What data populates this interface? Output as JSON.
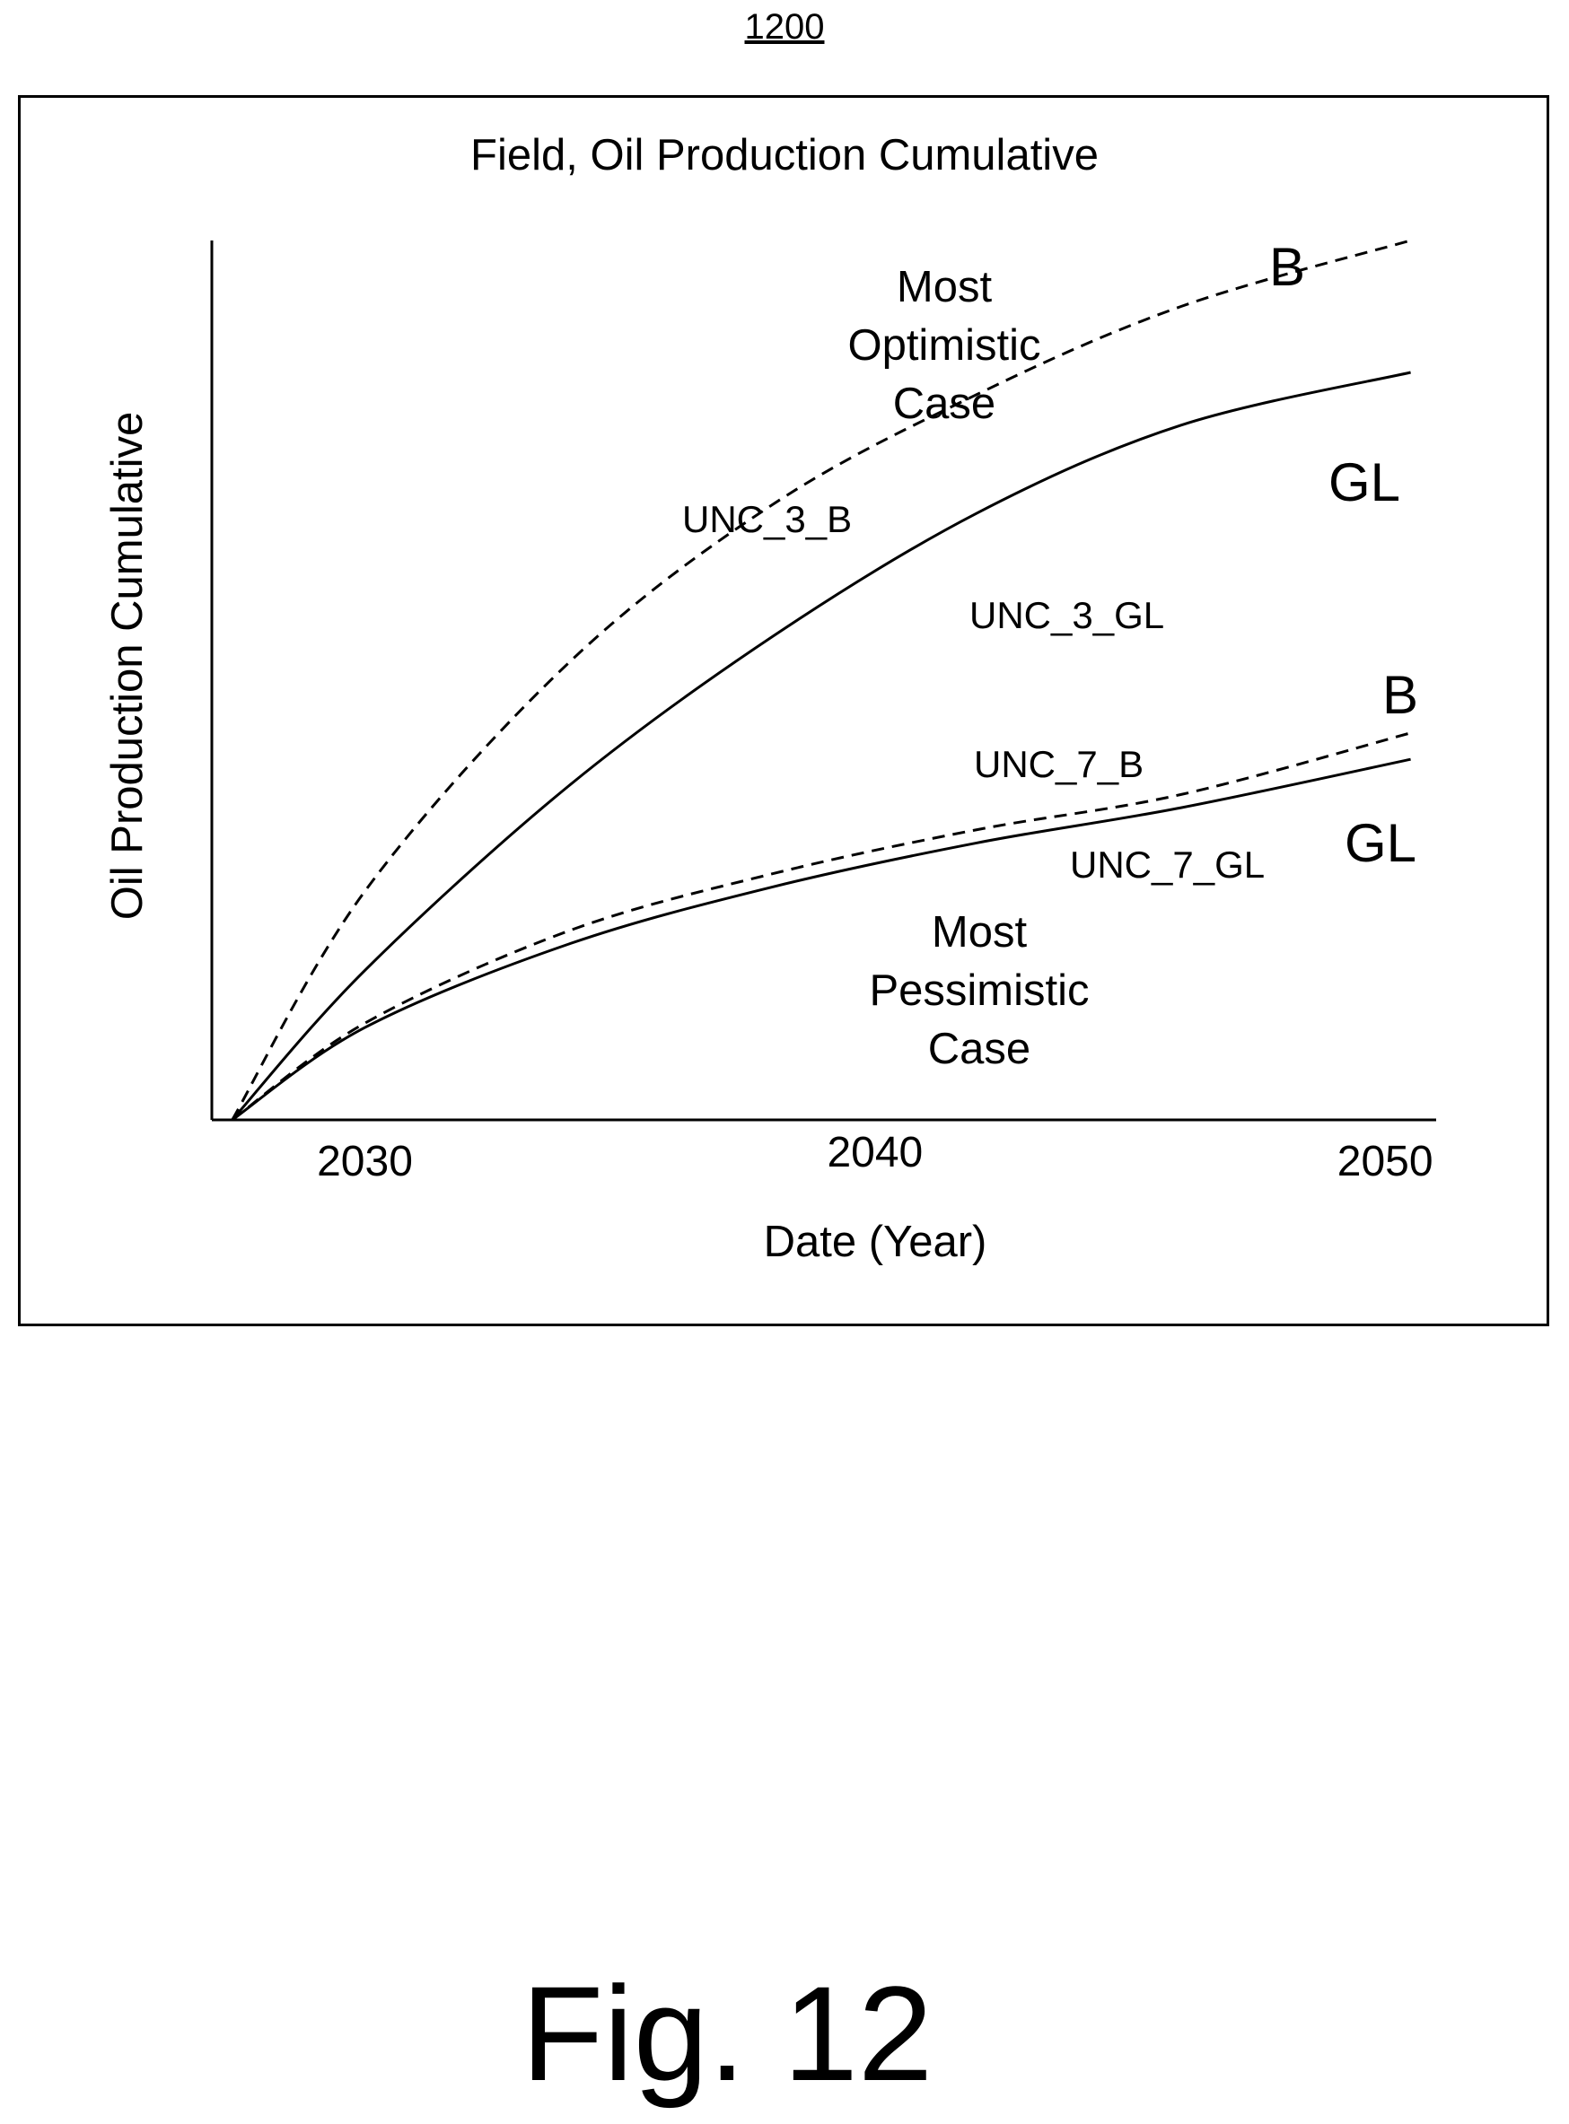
{
  "figure": {
    "ref_number": "1200",
    "caption": "Fig. 12"
  },
  "chart_data": {
    "type": "line",
    "title": "Field, Oil Production Cumulative",
    "xlabel": "Date (Year)",
    "ylabel": "Oil Production Cumulative",
    "x_ticks": [
      2030,
      2040,
      2050
    ],
    "xlim": [
      2027,
      2051
    ],
    "ylim": [
      0,
      100
    ],
    "grid": false,
    "series": [
      {
        "name": "UNC_3_B",
        "style": "dashed",
        "x": [
          2027.4,
          2030,
          2034,
          2038,
          2042,
          2046,
          2050.5
        ],
        "values": [
          0,
          26,
          52,
          70,
          82.5,
          92.5,
          100
        ]
      },
      {
        "name": "UNC_3_GL",
        "style": "solid",
        "x": [
          2027.4,
          2030,
          2034,
          2038,
          2042,
          2046,
          2050.5
        ],
        "values": [
          0,
          17,
          38,
          55,
          69,
          79,
          85
        ]
      },
      {
        "name": "UNC_7_B",
        "style": "dashed",
        "x": [
          2027.4,
          2030,
          2034,
          2038,
          2042,
          2046,
          2050.5
        ],
        "values": [
          0,
          11,
          21.5,
          28,
          33,
          37,
          44
        ]
      },
      {
        "name": "UNC_7_GL",
        "style": "solid",
        "x": [
          2027.4,
          2030,
          2034,
          2038,
          2042,
          2046,
          2050.5
        ],
        "values": [
          0,
          10.5,
          20,
          26.5,
          31.5,
          35.5,
          41
        ]
      }
    ],
    "annotations": [
      {
        "id": "optimistic",
        "lines": [
          "Most",
          "Optimistic",
          "Case"
        ]
      },
      {
        "id": "pessimistic",
        "lines": [
          "Most",
          "Pessimistic",
          "Case"
        ]
      },
      {
        "id": "b-upper",
        "text": "B"
      },
      {
        "id": "gl-upper",
        "text": "GL"
      },
      {
        "id": "b-lower",
        "text": "B"
      },
      {
        "id": "gl-lower",
        "text": "GL"
      }
    ]
  }
}
